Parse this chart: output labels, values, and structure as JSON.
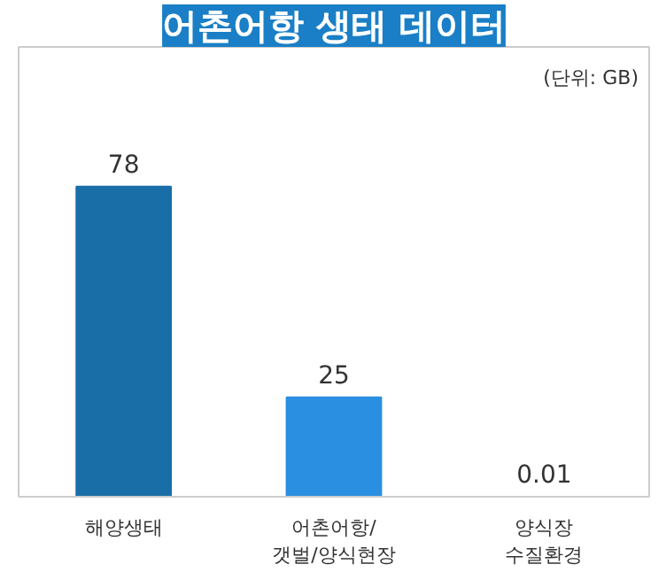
{
  "chart_data": {
    "type": "bar",
    "title": "어촌어항 생태 데이터",
    "categories": [
      "해양생태",
      "어촌어항/\n갯벌/양식현장",
      "양식장\n수질환경"
    ],
    "values": [
      78,
      25,
      0.01
    ],
    "colors": [
      "#1a6ea8",
      "#2a8fe0",
      "#4a4a4a"
    ],
    "data_labels": true,
    "annotations": [
      "(단위: GB)"
    ]
  }
}
